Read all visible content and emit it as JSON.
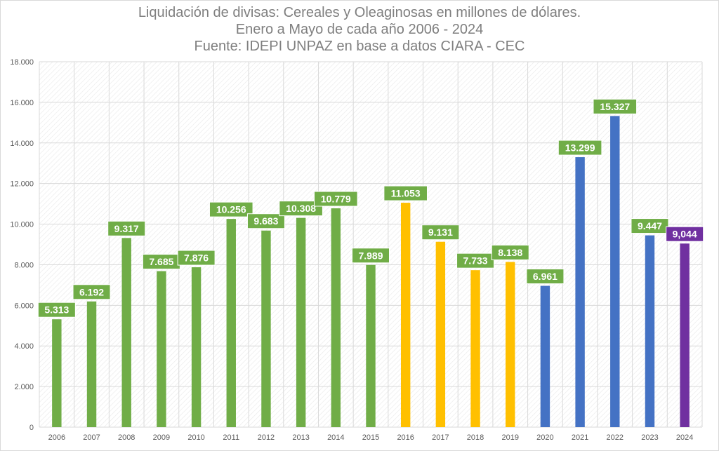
{
  "chart_data": {
    "type": "bar",
    "title": "Liquidación de divisas: Cereales y Oleaginosas en millones de dólares.",
    "subtitle": "Enero a Mayo de cada año 2006 - 2024",
    "source": "Fuente: IDEPI UNPAZ en base a datos CIARA - CEC",
    "xlabel": "",
    "ylabel": "",
    "ylim": [
      0,
      18000
    ],
    "yticks": [
      0,
      2000,
      4000,
      6000,
      8000,
      10000,
      12000,
      14000,
      16000,
      18000
    ],
    "ytick_labels": [
      "0",
      "2.000",
      "4.000",
      "6.000",
      "8.000",
      "10.000",
      "12.000",
      "14.000",
      "16.000",
      "18.000"
    ],
    "grid": true,
    "legend": "none",
    "categories": [
      "2006",
      "2007",
      "2008",
      "2009",
      "2010",
      "2011",
      "2012",
      "2013",
      "2014",
      "2015",
      "2016",
      "2017",
      "2018",
      "2019",
      "2020",
      "2021",
      "2022",
      "2023",
      "2024"
    ],
    "values": [
      5313,
      6192,
      9317,
      7685,
      7876,
      10256,
      9683,
      10308,
      10779,
      7989,
      11053,
      9131,
      7733,
      8138,
      6961,
      13299,
      15327,
      9447,
      9044
    ],
    "value_labels": [
      "5.313",
      "6.192",
      "9.317",
      "7.685",
      "7.876",
      "10.256",
      "9.683",
      "10.308",
      "10.779",
      "7.989",
      "11.053",
      "9.131",
      "7.733",
      "8.138",
      "6.961",
      "13.299",
      "15.327",
      "9.447",
      "9,044"
    ],
    "bar_colors": [
      "#70ad47",
      "#70ad47",
      "#70ad47",
      "#70ad47",
      "#70ad47",
      "#70ad47",
      "#70ad47",
      "#70ad47",
      "#70ad47",
      "#70ad47",
      "#ffc000",
      "#ffc000",
      "#ffc000",
      "#ffc000",
      "#4472c4",
      "#4472c4",
      "#4472c4",
      "#4472c4",
      "#7030a0"
    ],
    "label_colors": [
      "#70ad47",
      "#70ad47",
      "#70ad47",
      "#70ad47",
      "#70ad47",
      "#70ad47",
      "#70ad47",
      "#70ad47",
      "#70ad47",
      "#70ad47",
      "#70ad47",
      "#70ad47",
      "#70ad47",
      "#70ad47",
      "#70ad47",
      "#70ad47",
      "#70ad47",
      "#70ad47",
      "#7030a0"
    ],
    "axis_text_color": "#595959",
    "grid_color": "#d9d9d9"
  }
}
